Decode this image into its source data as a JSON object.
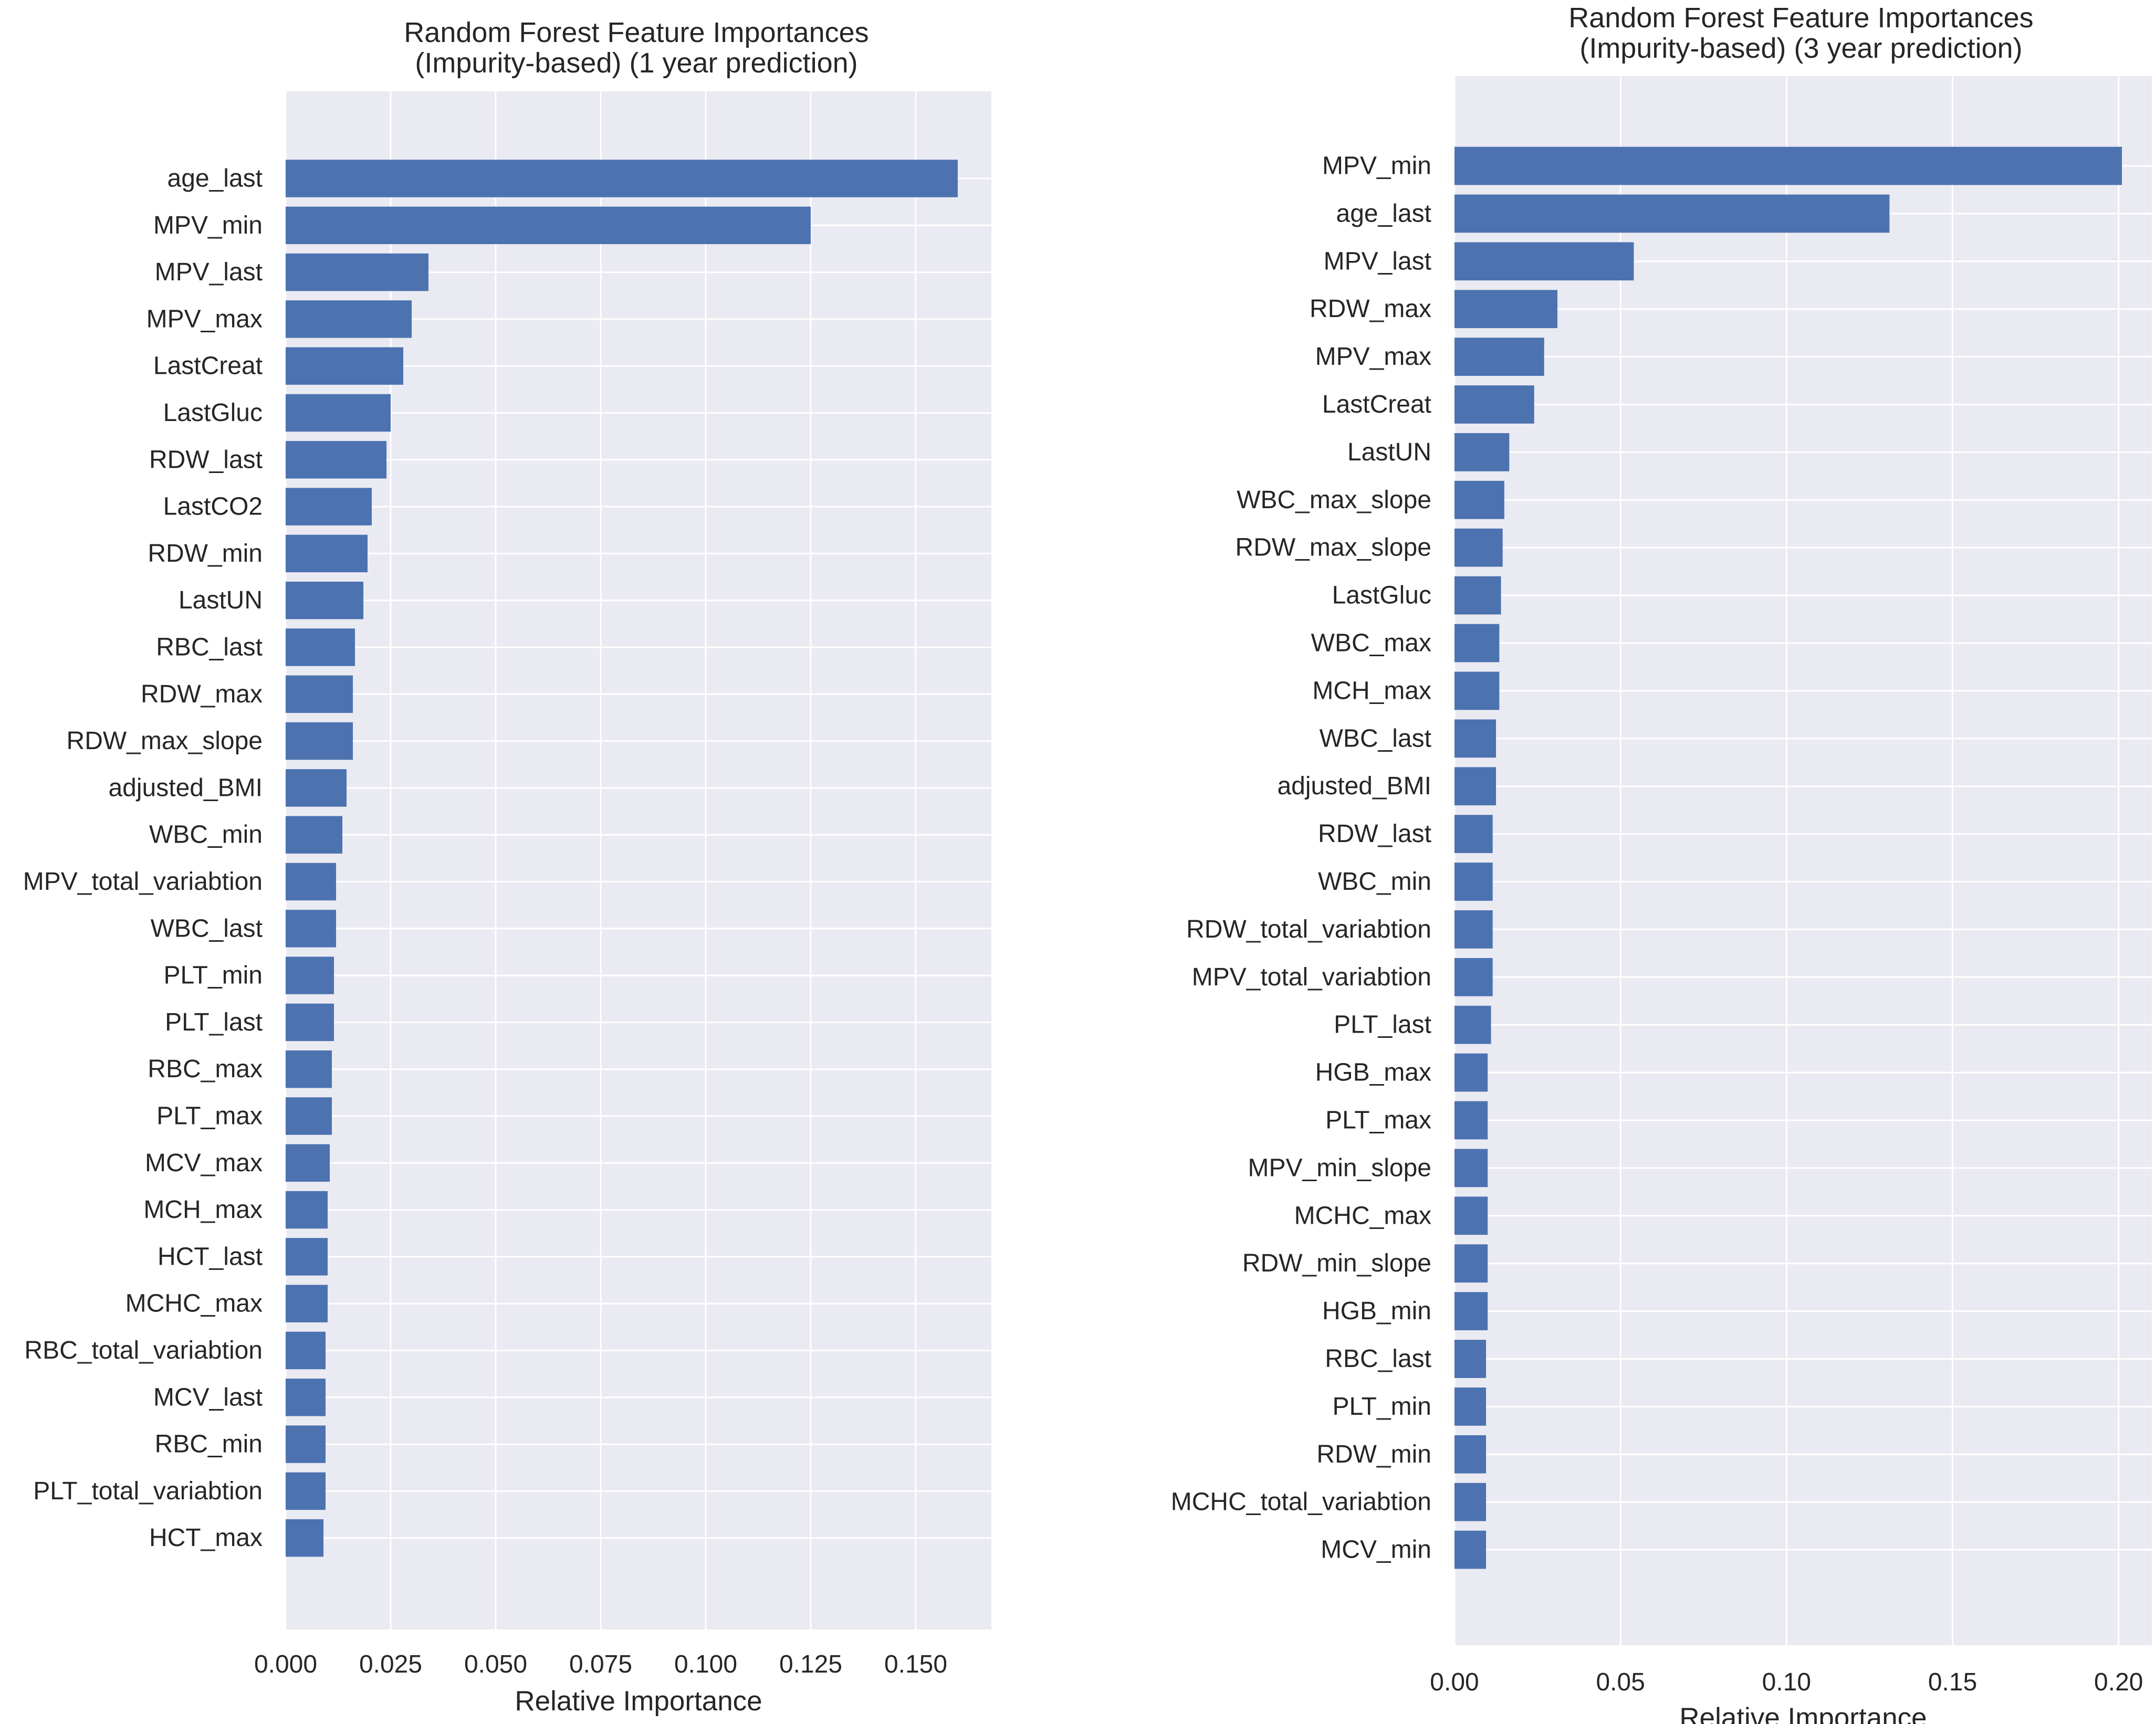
{
  "chart_data": [
    {
      "type": "bar",
      "orientation": "horizontal",
      "title": "Random Forest Feature Importances\n(Impurity-based) (1 year prediction)",
      "xlabel": "Relative Importance",
      "ylabel": "",
      "xlim": [
        0,
        0.168
      ],
      "xticks": [
        0.0,
        0.025,
        0.05,
        0.075,
        0.1,
        0.125,
        0.15
      ],
      "xtick_labels": [
        "0.000",
        "0.025",
        "0.050",
        "0.075",
        "0.100",
        "0.125",
        "0.150"
      ],
      "grid": true,
      "color": "#4c72b0",
      "background": "#eaeaf2",
      "categories": [
        "age_last",
        "MPV_min",
        "MPV_last",
        "MPV_max",
        "LastCreat",
        "LastGluc",
        "RDW_last",
        "LastCO2",
        "RDW_min",
        "LastUN",
        "RBC_last",
        "RDW_max",
        "RDW_max_slope",
        "adjusted_BMI",
        "WBC_min",
        "MPV_total_variabtion",
        "WBC_last",
        "PLT_min",
        "PLT_last",
        "RBC_max",
        "PLT_max",
        "MCV_max",
        "MCH_max",
        "HCT_last",
        "MCHC_max",
        "RBC_total_variabtion",
        "MCV_last",
        "RBC_min",
        "PLT_total_variabtion",
        "HCT_max"
      ],
      "values": [
        0.16,
        0.125,
        0.034,
        0.03,
        0.028,
        0.025,
        0.024,
        0.0205,
        0.0195,
        0.0185,
        0.0165,
        0.016,
        0.016,
        0.0145,
        0.0135,
        0.012,
        0.012,
        0.0115,
        0.0115,
        0.011,
        0.011,
        0.0105,
        0.01,
        0.01,
        0.01,
        0.0095,
        0.0095,
        0.0095,
        0.0095,
        0.009
      ]
    },
    {
      "type": "bar",
      "orientation": "horizontal",
      "title": "Random Forest Feature Importances\n(Impurity-based) (3 year prediction)",
      "xlabel": "Relative Importance",
      "ylabel": "",
      "xlim": [
        0,
        0.21
      ],
      "xticks": [
        0.0,
        0.05,
        0.1,
        0.15,
        0.2
      ],
      "xtick_labels": [
        "0.00",
        "0.05",
        "0.10",
        "0.15",
        "0.20"
      ],
      "grid": true,
      "color": "#4c72b0",
      "background": "#eaeaf2",
      "categories": [
        "MPV_min",
        "age_last",
        "MPV_last",
        "RDW_max",
        "MPV_max",
        "LastCreat",
        "LastUN",
        "WBC_max_slope",
        "RDW_max_slope",
        "LastGluc",
        "WBC_max",
        "MCH_max",
        "WBC_last",
        "adjusted_BMI",
        "RDW_last",
        "WBC_min",
        "RDW_total_variabtion",
        "MPV_total_variabtion",
        "PLT_last",
        "HGB_max",
        "PLT_max",
        "MPV_min_slope",
        "MCHC_max",
        "RDW_min_slope",
        "HGB_min",
        "RBC_last",
        "PLT_min",
        "RDW_min",
        "MCHC_total_variabtion",
        "MCV_min"
      ],
      "values": [
        0.201,
        0.131,
        0.054,
        0.031,
        0.027,
        0.024,
        0.0165,
        0.015,
        0.0145,
        0.014,
        0.0135,
        0.0135,
        0.0125,
        0.0125,
        0.0115,
        0.0115,
        0.0115,
        0.0115,
        0.011,
        0.01,
        0.01,
        0.01,
        0.01,
        0.01,
        0.01,
        0.0095,
        0.0095,
        0.0095,
        0.0095,
        0.0095
      ]
    }
  ]
}
